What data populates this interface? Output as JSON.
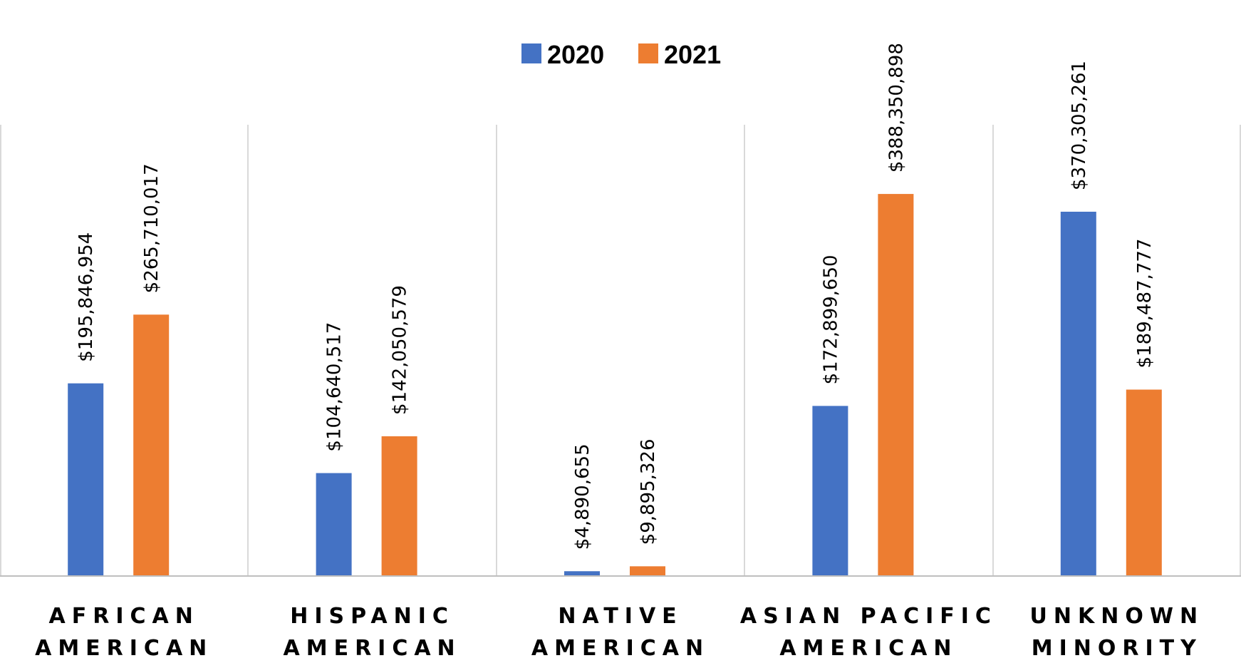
{
  "chart_data": {
    "type": "bar",
    "title": "",
    "xlabel": "",
    "ylabel": "",
    "categories": [
      [
        "AFRICAN",
        "AMERICAN"
      ],
      [
        "HISPANIC",
        "AMERICAN"
      ],
      [
        "NATIVE",
        "AMERICAN"
      ],
      [
        "ASIAN PACIFIC",
        "AMERICAN"
      ],
      [
        "UNKNOWN",
        "MINORITY"
      ]
    ],
    "series": [
      {
        "name": "2020",
        "color": "#4472C4",
        "values": [
          195846954,
          104640517,
          4890655,
          172899650,
          370305261
        ],
        "labels": [
          "$195,846,954",
          "$104,640,517",
          "$4,890,655",
          "$172,899,650",
          "$370,305,261"
        ]
      },
      {
        "name": "2021",
        "color": "#ED7D31",
        "values": [
          265710017,
          142050579,
          9895326,
          388350898,
          189487777
        ],
        "labels": [
          "$265,710,017",
          "$142,050,579",
          "$9,895,326",
          "$388,350,898",
          "$189,487,777"
        ]
      }
    ],
    "ylim": [
      0,
      450000000
    ],
    "grid": false,
    "legend": "top-center",
    "category_separators": true
  }
}
